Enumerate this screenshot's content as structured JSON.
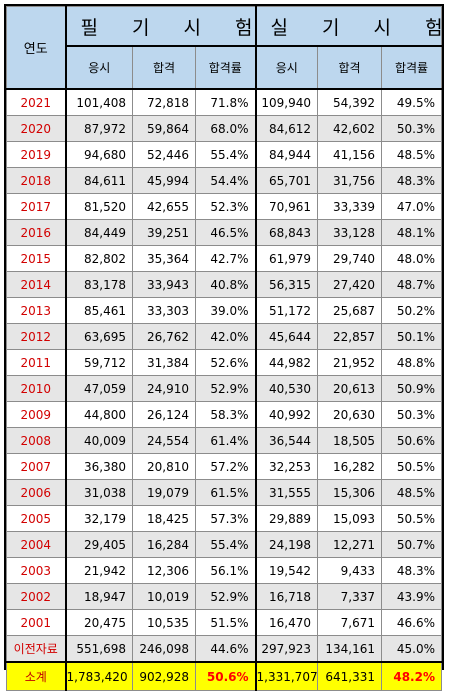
{
  "header": {
    "year_label": "연도",
    "written_exam": "필 기 시 험",
    "practical_exam": "실 기 시 험",
    "applicants": "응시",
    "passed": "합격",
    "pass_rate": "합격률"
  },
  "rows": [
    {
      "year": "2021",
      "w_app": "101,408",
      "w_pass": "72,818",
      "w_rate": "71.8%",
      "p_app": "109,940",
      "p_pass": "54,392",
      "p_rate": "49.5%"
    },
    {
      "year": "2020",
      "w_app": "87,972",
      "w_pass": "59,864",
      "w_rate": "68.0%",
      "p_app": "84,612",
      "p_pass": "42,602",
      "p_rate": "50.3%"
    },
    {
      "year": "2019",
      "w_app": "94,680",
      "w_pass": "52,446",
      "w_rate": "55.4%",
      "p_app": "84,944",
      "p_pass": "41,156",
      "p_rate": "48.5%"
    },
    {
      "year": "2018",
      "w_app": "84,611",
      "w_pass": "45,994",
      "w_rate": "54.4%",
      "p_app": "65,701",
      "p_pass": "31,756",
      "p_rate": "48.3%"
    },
    {
      "year": "2017",
      "w_app": "81,520",
      "w_pass": "42,655",
      "w_rate": "52.3%",
      "p_app": "70,961",
      "p_pass": "33,339",
      "p_rate": "47.0%"
    },
    {
      "year": "2016",
      "w_app": "84,449",
      "w_pass": "39,251",
      "w_rate": "46.5%",
      "p_app": "68,843",
      "p_pass": "33,128",
      "p_rate": "48.1%"
    },
    {
      "year": "2015",
      "w_app": "82,802",
      "w_pass": "35,364",
      "w_rate": "42.7%",
      "p_app": "61,979",
      "p_pass": "29,740",
      "p_rate": "48.0%"
    },
    {
      "year": "2014",
      "w_app": "83,178",
      "w_pass": "33,943",
      "w_rate": "40.8%",
      "p_app": "56,315",
      "p_pass": "27,420",
      "p_rate": "48.7%"
    },
    {
      "year": "2013",
      "w_app": "85,461",
      "w_pass": "33,303",
      "w_rate": "39.0%",
      "p_app": "51,172",
      "p_pass": "25,687",
      "p_rate": "50.2%"
    },
    {
      "year": "2012",
      "w_app": "63,695",
      "w_pass": "26,762",
      "w_rate": "42.0%",
      "p_app": "45,644",
      "p_pass": "22,857",
      "p_rate": "50.1%"
    },
    {
      "year": "2011",
      "w_app": "59,712",
      "w_pass": "31,384",
      "w_rate": "52.6%",
      "p_app": "44,982",
      "p_pass": "21,952",
      "p_rate": "48.8%"
    },
    {
      "year": "2010",
      "w_app": "47,059",
      "w_pass": "24,910",
      "w_rate": "52.9%",
      "p_app": "40,530",
      "p_pass": "20,613",
      "p_rate": "50.9%"
    },
    {
      "year": "2009",
      "w_app": "44,800",
      "w_pass": "26,124",
      "w_rate": "58.3%",
      "p_app": "40,992",
      "p_pass": "20,630",
      "p_rate": "50.3%"
    },
    {
      "year": "2008",
      "w_app": "40,009",
      "w_pass": "24,554",
      "w_rate": "61.4%",
      "p_app": "36,544",
      "p_pass": "18,505",
      "p_rate": "50.6%"
    },
    {
      "year": "2007",
      "w_app": "36,380",
      "w_pass": "20,810",
      "w_rate": "57.2%",
      "p_app": "32,253",
      "p_pass": "16,282",
      "p_rate": "50.5%"
    },
    {
      "year": "2006",
      "w_app": "31,038",
      "w_pass": "19,079",
      "w_rate": "61.5%",
      "p_app": "31,555",
      "p_pass": "15,306",
      "p_rate": "48.5%"
    },
    {
      "year": "2005",
      "w_app": "32,179",
      "w_pass": "18,425",
      "w_rate": "57.3%",
      "p_app": "29,889",
      "p_pass": "15,093",
      "p_rate": "50.5%"
    },
    {
      "year": "2004",
      "w_app": "29,405",
      "w_pass": "16,284",
      "w_rate": "55.4%",
      "p_app": "24,198",
      "p_pass": "12,271",
      "p_rate": "50.7%"
    },
    {
      "year": "2003",
      "w_app": "21,942",
      "w_pass": "12,306",
      "w_rate": "56.1%",
      "p_app": "19,542",
      "p_pass": "9,433",
      "p_rate": "48.3%"
    },
    {
      "year": "2002",
      "w_app": "18,947",
      "w_pass": "10,019",
      "w_rate": "52.9%",
      "p_app": "16,718",
      "p_pass": "7,337",
      "p_rate": "43.9%"
    },
    {
      "year": "2001",
      "w_app": "20,475",
      "w_pass": "10,535",
      "w_rate": "51.5%",
      "p_app": "16,470",
      "p_pass": "7,671",
      "p_rate": "46.6%"
    },
    {
      "year": "이전자료",
      "w_app": "551,698",
      "w_pass": "246,098",
      "w_rate": "44.6%",
      "p_app": "297,923",
      "p_pass": "134,161",
      "p_rate": "45.0%"
    }
  ],
  "total": {
    "year": "소계",
    "w_app": "1,783,420",
    "w_pass": "902,928",
    "w_rate": "50.6%",
    "p_app": "1,331,707",
    "p_pass": "641,331",
    "p_rate": "48.2%"
  },
  "colors": {
    "header_bg": "#bdd7ee",
    "shaded_row_bg": "#e6e6e6",
    "total_row_bg": "#ffff00",
    "year_text": "#d20000",
    "total_rate_text": "#ff0000"
  }
}
